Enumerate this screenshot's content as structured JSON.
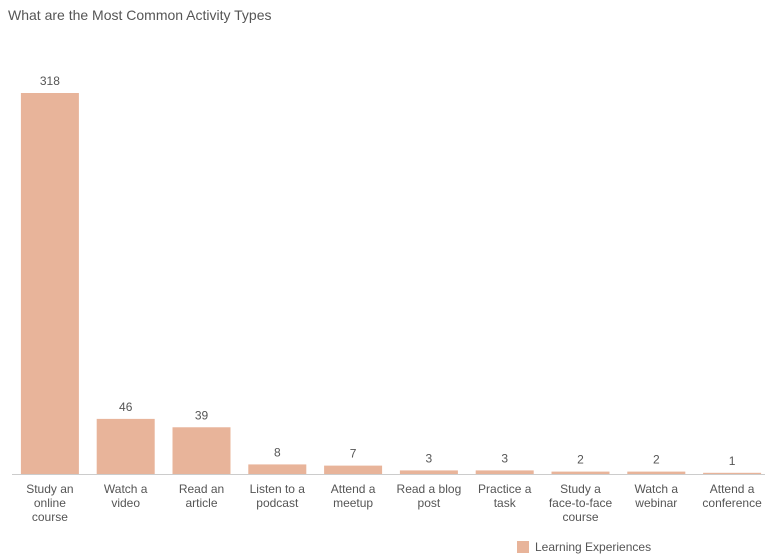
{
  "chart_data": {
    "type": "bar",
    "title": "What are the Most Common Activity Types",
    "categories": [
      [
        "Study an",
        "online",
        "course"
      ],
      [
        "Watch a",
        "video"
      ],
      [
        "Read an",
        "article"
      ],
      [
        "Listen to a",
        "podcast"
      ],
      [
        "Attend a",
        "meetup"
      ],
      [
        "Read a blog",
        "post"
      ],
      [
        "Practice a",
        "task"
      ],
      [
        "Study a",
        "face-to-face",
        "course"
      ],
      [
        "Watch a",
        "webinar"
      ],
      [
        "Attend a",
        "conference"
      ]
    ],
    "series": [
      {
        "name": "Learning Experiences",
        "color": "#e8b49a",
        "values": [
          318,
          46,
          39,
          8,
          7,
          3,
          3,
          2,
          2,
          1
        ]
      }
    ],
    "xlabel": "",
    "ylabel": "",
    "ylim": [
      0,
      318
    ],
    "grid": false,
    "legend": "bottom-right"
  },
  "colors": {
    "bar": "#e8b49a",
    "text": "#555555",
    "axis": "#cccccc"
  }
}
